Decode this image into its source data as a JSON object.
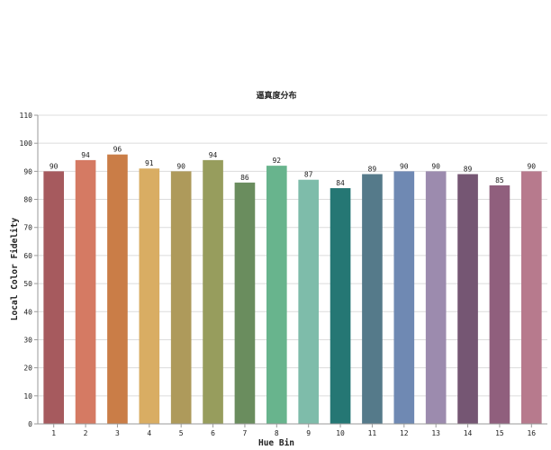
{
  "chart_data": {
    "type": "bar",
    "title": "逼真度分布",
    "xlabel": "Hue Bin",
    "ylabel": "Local Color Fidelity",
    "categories": [
      "1",
      "2",
      "3",
      "4",
      "5",
      "6",
      "7",
      "8",
      "9",
      "10",
      "11",
      "12",
      "13",
      "14",
      "15",
      "16"
    ],
    "values": [
      90,
      94,
      96,
      91,
      90,
      94,
      86,
      92,
      87,
      84,
      89,
      90,
      90,
      89,
      85,
      90
    ],
    "data_labels": [
      "90",
      "94",
      "96",
      "91",
      "90",
      "94",
      "86",
      "92",
      "87",
      "84",
      "89",
      "90",
      "90",
      "89",
      "85",
      "90"
    ],
    "ylim": [
      0,
      110
    ],
    "yticks": [
      0,
      10,
      20,
      30,
      40,
      50,
      60,
      70,
      80,
      90,
      100,
      110
    ],
    "ytick_labels": [
      "0",
      "10",
      "20",
      "30",
      "40",
      "50",
      "60",
      "70",
      "80",
      "90",
      "100",
      "110"
    ],
    "grid": true,
    "legend": false,
    "colors": [
      "#a65a5e",
      "#d57a63",
      "#ca7d47",
      "#d9ad63",
      "#ae9a5b",
      "#979d5d",
      "#6a8d5e",
      "#68b48d",
      "#7ebcaa",
      "#257774",
      "#557a8a",
      "#6f89b3",
      "#9c8bae",
      "#755673",
      "#905f7d",
      "#b77a8d"
    ]
  }
}
